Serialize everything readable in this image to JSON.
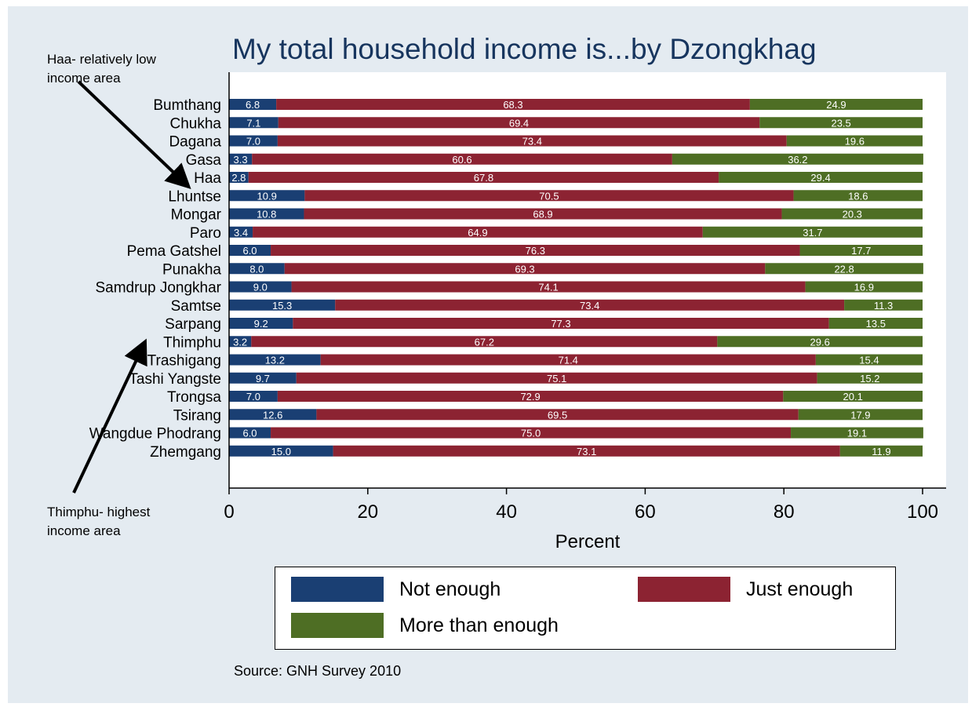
{
  "chart_data": {
    "type": "bar",
    "orientation": "horizontal",
    "stacked": true,
    "title": "My total household income is...by Dzongkhag",
    "xlabel": "Percent",
    "ylabel": "",
    "xlim": [
      0,
      100
    ],
    "xticks": [
      0,
      20,
      40,
      60,
      80,
      100
    ],
    "categories": [
      "Bumthang",
      "Chukha",
      "Dagana",
      "Gasa",
      "Haa",
      "Lhuntse",
      "Mongar",
      "Paro",
      "Pema Gatshel",
      "Punakha",
      "Samdrup Jongkhar",
      "Samtse",
      "Sarpang",
      "Thimphu",
      "Trashigang",
      "Tashi Yangste",
      "Trongsa",
      "Tsirang",
      "Wangdue Phodrang",
      "Zhemgang"
    ],
    "series": [
      {
        "name": "Not enough",
        "color": "#1a3f73",
        "values": [
          6.8,
          7.1,
          7.0,
          3.3,
          2.8,
          10.9,
          10.8,
          3.4,
          6.0,
          8.0,
          9.0,
          15.3,
          9.2,
          3.2,
          13.2,
          9.7,
          7.0,
          12.6,
          6.0,
          15.0
        ]
      },
      {
        "name": "Just enough",
        "color": "#8c2332",
        "values": [
          68.3,
          69.4,
          73.4,
          60.6,
          67.8,
          70.5,
          68.9,
          64.9,
          76.3,
          69.3,
          74.1,
          73.4,
          77.3,
          67.2,
          71.4,
          75.1,
          72.9,
          69.5,
          75.0,
          73.1
        ]
      },
      {
        "name": "More than enough",
        "color": "#4e6e24",
        "values": [
          24.9,
          23.5,
          19.6,
          36.2,
          29.4,
          18.6,
          20.3,
          31.7,
          17.7,
          22.8,
          16.9,
          11.3,
          13.5,
          29.6,
          15.4,
          15.2,
          20.1,
          17.9,
          19.1,
          11.9
        ]
      }
    ],
    "legend_position": "bottom",
    "grid": false
  },
  "source": "Source: GNH Survey 2010",
  "annotations": {
    "haa": "Haa- relatively low income area",
    "thimphu": "Thimphu- highest income area"
  }
}
